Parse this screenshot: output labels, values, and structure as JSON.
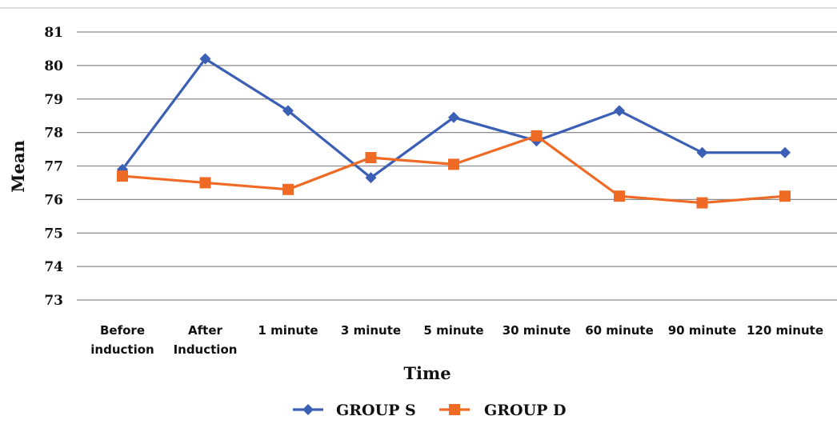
{
  "chart_data": {
    "type": "line",
    "title": "",
    "xlabel": "Time",
    "ylabel": "Mean",
    "categories": [
      [
        "Before",
        "induction"
      ],
      [
        "After",
        "Induction"
      ],
      [
        "1 minute"
      ],
      [
        "3 minute"
      ],
      [
        "5 minute"
      ],
      [
        "30 minute"
      ],
      [
        "60 minute"
      ],
      [
        "90 minute"
      ],
      [
        "120 minute"
      ]
    ],
    "ylim": [
      73,
      81
    ],
    "yticks": [
      73,
      74,
      75,
      76,
      77,
      78,
      79,
      80,
      81
    ],
    "grid": "horizontal",
    "legend_position": "bottom",
    "series": [
      {
        "name": "GROUP S",
        "color": "#3a5fb5",
        "marker": "diamond",
        "values": [
          76.9,
          80.2,
          78.65,
          76.65,
          78.45,
          77.75,
          78.65,
          77.4,
          77.4
        ]
      },
      {
        "name": "GROUP D",
        "color": "#ee6a25",
        "marker": "square",
        "values": [
          76.7,
          76.5,
          76.3,
          77.25,
          77.05,
          77.9,
          76.1,
          75.9,
          76.1
        ]
      }
    ]
  }
}
